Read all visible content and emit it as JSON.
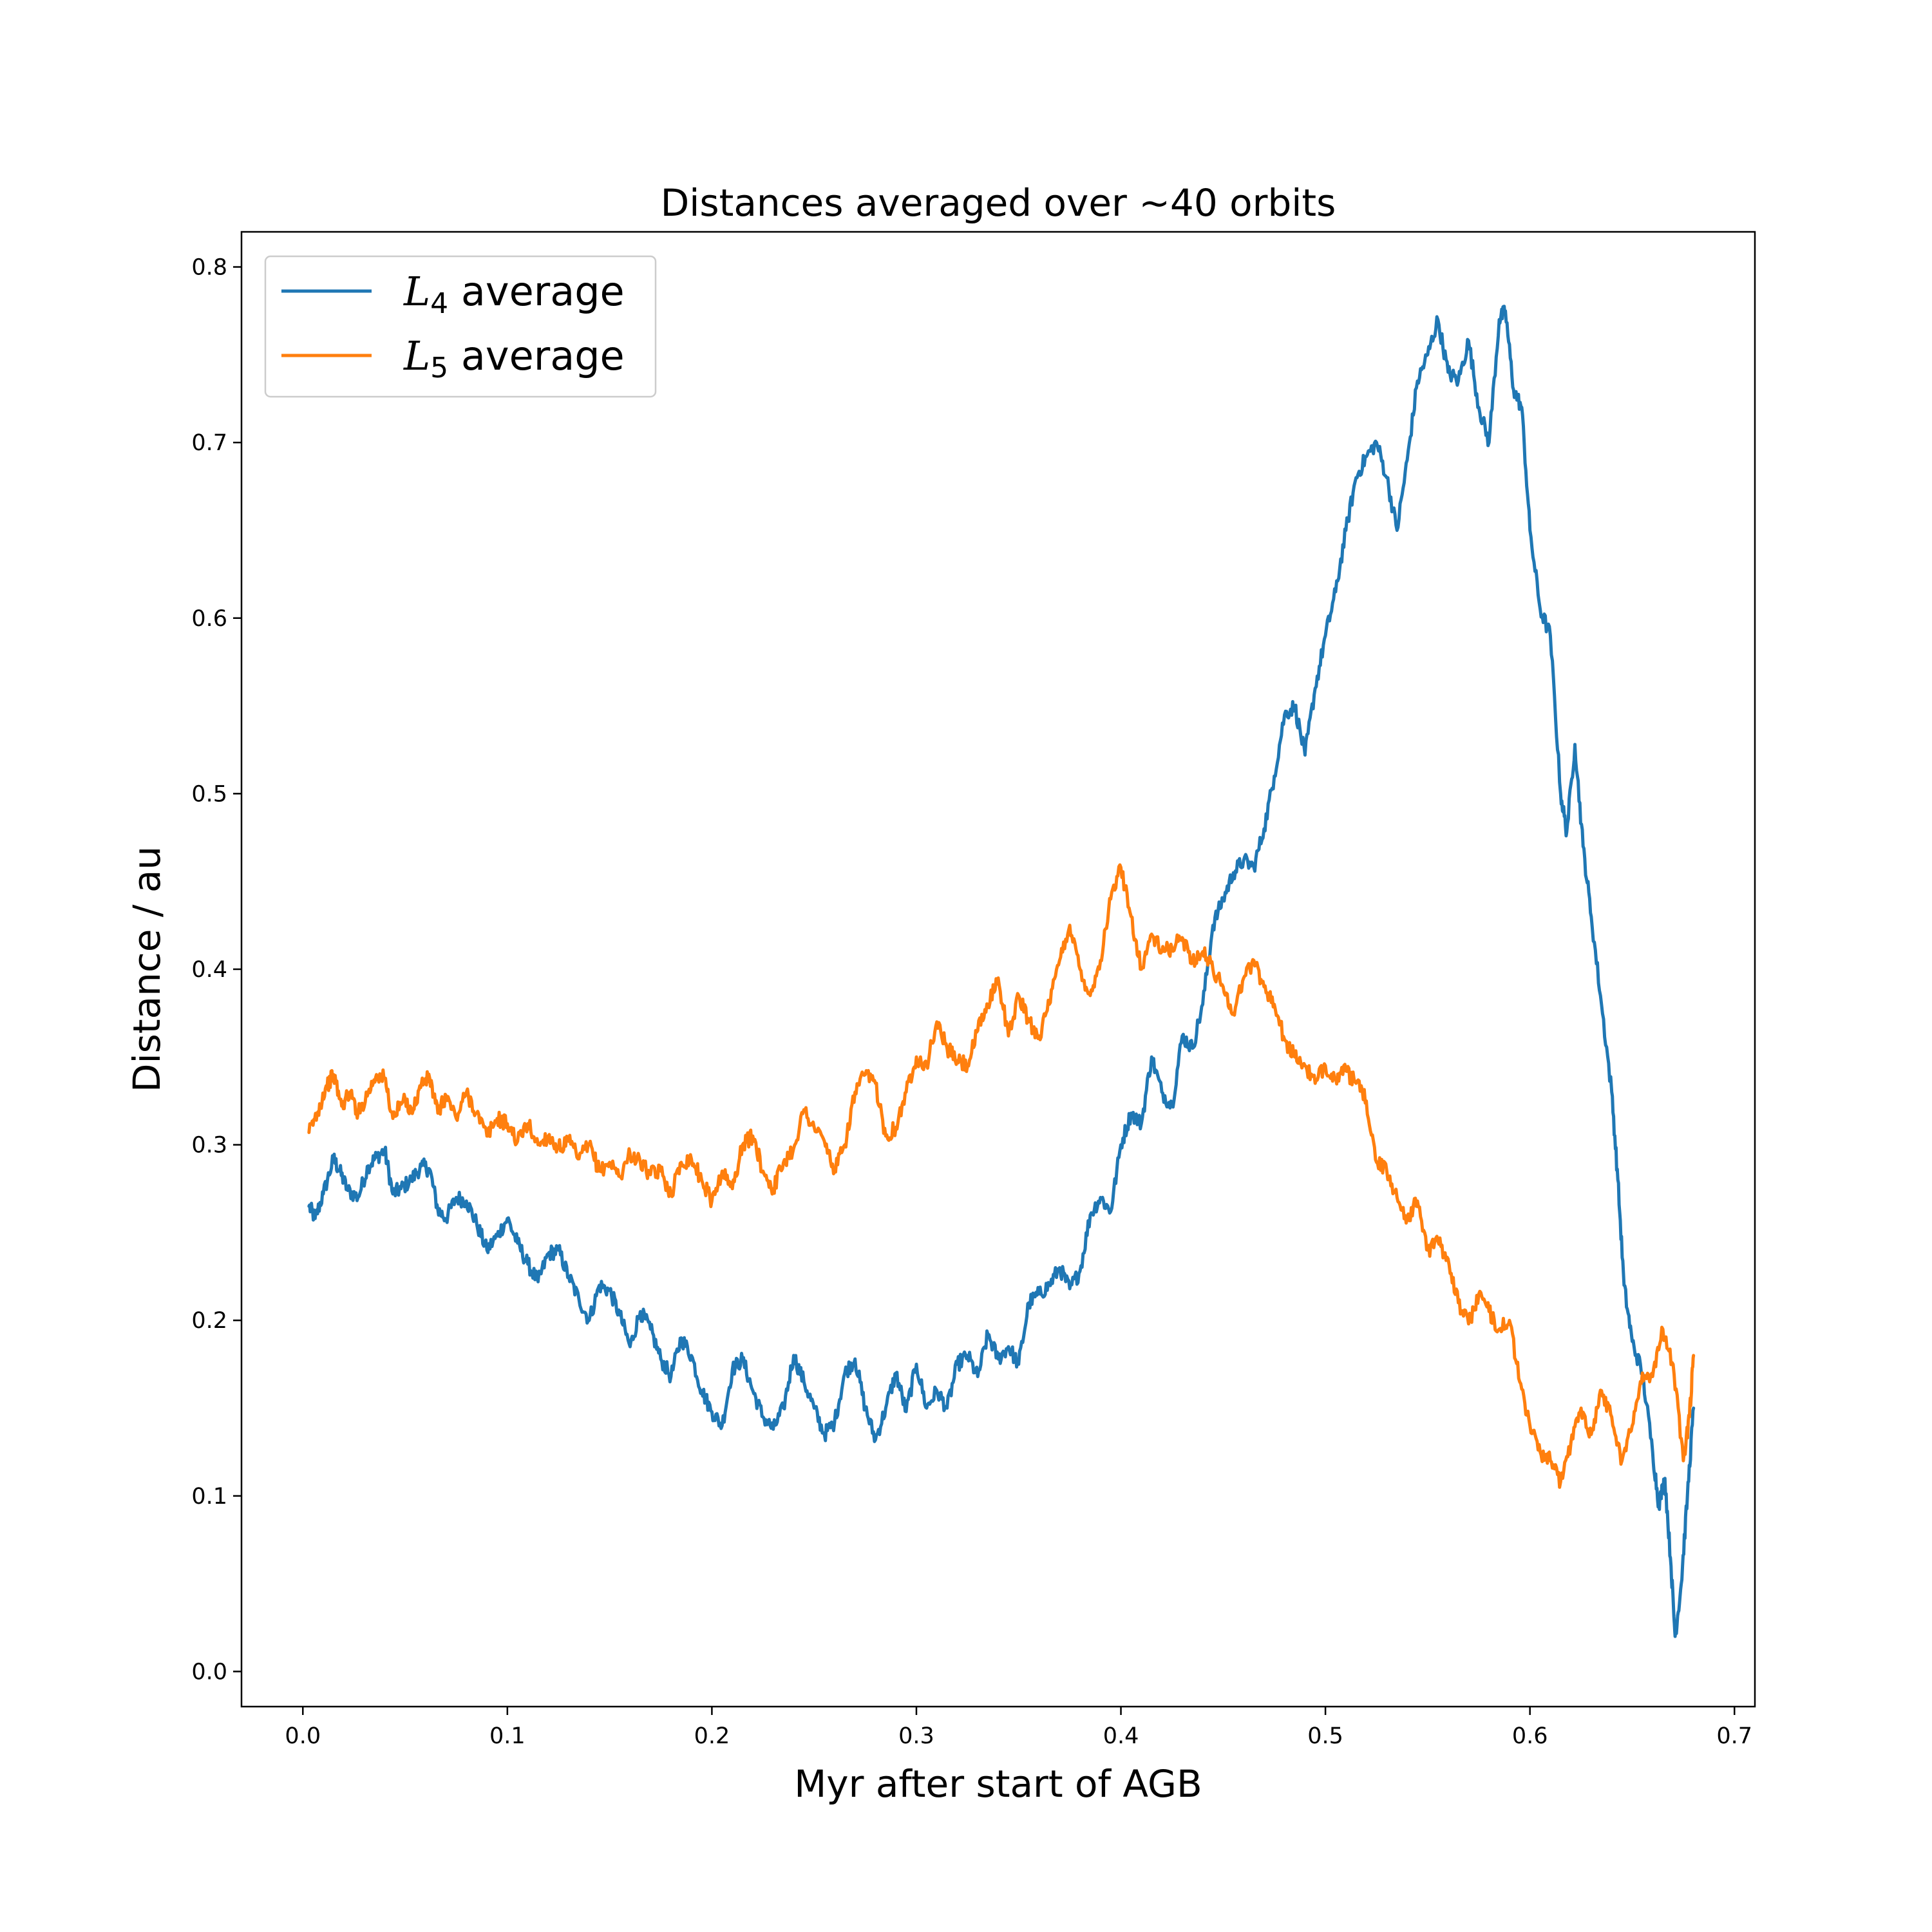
{
  "chart_data": {
    "type": "line",
    "title": "Distances averaged over  ~40 orbits",
    "xlabel": "Myr after start of AGB",
    "ylabel": "Distance / au",
    "xlim": [
      -0.03,
      0.71
    ],
    "ylim": [
      -0.02,
      0.82
    ],
    "x_ticks": [
      0.0,
      0.1,
      0.2,
      0.3,
      0.4,
      0.5,
      0.6,
      0.7
    ],
    "x_tick_labels": [
      "0.0",
      "0.1",
      "0.2",
      "0.3",
      "0.4",
      "0.5",
      "0.6",
      "0.7"
    ],
    "y_ticks": [
      0.0,
      0.1,
      0.2,
      0.3,
      0.4,
      0.5,
      0.6,
      0.7,
      0.8
    ],
    "y_tick_labels": [
      "0.0",
      "0.1",
      "0.2",
      "0.3",
      "0.4",
      "0.5",
      "0.6",
      "0.7",
      "0.8"
    ],
    "grid": false,
    "legend_position": "top-left",
    "series": [
      {
        "name": "L4 average",
        "legend_symbol": "L",
        "legend_subscript": "4",
        "legend_suffix": " average",
        "color": "#1f77b4",
        "points": [
          [
            0.003,
            0.265
          ],
          [
            0.006,
            0.258
          ],
          [
            0.01,
            0.272
          ],
          [
            0.015,
            0.292
          ],
          [
            0.018,
            0.285
          ],
          [
            0.022,
            0.274
          ],
          [
            0.027,
            0.27
          ],
          [
            0.032,
            0.288
          ],
          [
            0.036,
            0.293
          ],
          [
            0.04,
            0.297
          ],
          [
            0.044,
            0.272
          ],
          [
            0.048,
            0.275
          ],
          [
            0.053,
            0.28
          ],
          [
            0.058,
            0.288
          ],
          [
            0.062,
            0.286
          ],
          [
            0.066,
            0.263
          ],
          [
            0.07,
            0.258
          ],
          [
            0.075,
            0.27
          ],
          [
            0.08,
            0.268
          ],
          [
            0.085,
            0.255
          ],
          [
            0.09,
            0.24
          ],
          [
            0.095,
            0.248
          ],
          [
            0.1,
            0.258
          ],
          [
            0.105,
            0.244
          ],
          [
            0.11,
            0.232
          ],
          [
            0.115,
            0.222
          ],
          [
            0.12,
            0.238
          ],
          [
            0.125,
            0.24
          ],
          [
            0.13,
            0.225
          ],
          [
            0.135,
            0.212
          ],
          [
            0.14,
            0.2
          ],
          [
            0.145,
            0.22
          ],
          [
            0.15,
            0.217
          ],
          [
            0.155,
            0.203
          ],
          [
            0.16,
            0.185
          ],
          [
            0.165,
            0.205
          ],
          [
            0.17,
            0.195
          ],
          [
            0.175,
            0.178
          ],
          [
            0.18,
            0.168
          ],
          [
            0.185,
            0.19
          ],
          [
            0.19,
            0.18
          ],
          [
            0.195,
            0.16
          ],
          [
            0.2,
            0.148
          ],
          [
            0.205,
            0.14
          ],
          [
            0.21,
            0.172
          ],
          [
            0.215,
            0.178
          ],
          [
            0.22,
            0.16
          ],
          [
            0.225,
            0.145
          ],
          [
            0.23,
            0.138
          ],
          [
            0.235,
            0.15
          ],
          [
            0.24,
            0.18
          ],
          [
            0.245,
            0.165
          ],
          [
            0.25,
            0.15
          ],
          [
            0.255,
            0.135
          ],
          [
            0.26,
            0.142
          ],
          [
            0.265,
            0.17
          ],
          [
            0.27,
            0.178
          ],
          [
            0.275,
            0.15
          ],
          [
            0.28,
            0.132
          ],
          [
            0.285,
            0.15
          ],
          [
            0.29,
            0.17
          ],
          [
            0.295,
            0.148
          ],
          [
            0.3,
            0.175
          ],
          [
            0.305,
            0.15
          ],
          [
            0.31,
            0.16
          ],
          [
            0.315,
            0.15
          ],
          [
            0.32,
            0.175
          ],
          [
            0.325,
            0.18
          ],
          [
            0.33,
            0.168
          ],
          [
            0.335,
            0.192
          ],
          [
            0.34,
            0.178
          ],
          [
            0.345,
            0.185
          ],
          [
            0.35,
            0.175
          ],
          [
            0.355,
            0.21
          ],
          [
            0.36,
            0.215
          ],
          [
            0.365,
            0.22
          ],
          [
            0.37,
            0.23
          ],
          [
            0.375,
            0.218
          ],
          [
            0.38,
            0.228
          ],
          [
            0.385,
            0.26
          ],
          [
            0.39,
            0.27
          ],
          [
            0.395,
            0.262
          ],
          [
            0.4,
            0.3
          ],
          [
            0.405,
            0.318
          ],
          [
            0.41,
            0.312
          ],
          [
            0.415,
            0.35
          ],
          [
            0.42,
            0.33
          ],
          [
            0.425,
            0.322
          ],
          [
            0.43,
            0.362
          ],
          [
            0.435,
            0.355
          ],
          [
            0.44,
            0.38
          ],
          [
            0.445,
            0.425
          ],
          [
            0.45,
            0.44
          ],
          [
            0.455,
            0.455
          ],
          [
            0.46,
            0.462
          ],
          [
            0.465,
            0.458
          ],
          [
            0.47,
            0.48
          ],
          [
            0.475,
            0.51
          ],
          [
            0.48,
            0.545
          ],
          [
            0.485,
            0.55
          ],
          [
            0.49,
            0.522
          ],
          [
            0.495,
            0.56
          ],
          [
            0.5,
            0.59
          ],
          [
            0.505,
            0.615
          ],
          [
            0.51,
            0.65
          ],
          [
            0.515,
            0.68
          ],
          [
            0.52,
            0.692
          ],
          [
            0.525,
            0.7
          ],
          [
            0.53,
            0.68
          ],
          [
            0.535,
            0.65
          ],
          [
            0.54,
            0.69
          ],
          [
            0.545,
            0.735
          ],
          [
            0.55,
            0.75
          ],
          [
            0.555,
            0.77
          ],
          [
            0.56,
            0.74
          ],
          [
            0.565,
            0.735
          ],
          [
            0.57,
            0.758
          ],
          [
            0.575,
            0.72
          ],
          [
            0.58,
            0.7
          ],
          [
            0.585,
            0.77
          ],
          [
            0.588,
            0.775
          ],
          [
            0.592,
            0.73
          ],
          [
            0.596,
            0.72
          ],
          [
            0.6,
            0.65
          ],
          [
            0.605,
            0.605
          ],
          [
            0.61,
            0.59
          ],
          [
            0.615,
            0.5
          ],
          [
            0.618,
            0.478
          ],
          [
            0.622,
            0.528
          ],
          [
            0.626,
            0.47
          ],
          [
            0.63,
            0.43
          ],
          [
            0.635,
            0.38
          ],
          [
            0.64,
            0.33
          ],
          [
            0.643,
            0.28
          ],
          [
            0.646,
            0.22
          ],
          [
            0.65,
            0.188
          ],
          [
            0.655,
            0.17
          ],
          [
            0.66,
            0.125
          ],
          [
            0.663,
            0.095
          ],
          [
            0.666,
            0.11
          ],
          [
            0.669,
            0.06
          ],
          [
            0.671,
            0.02
          ],
          [
            0.674,
            0.05
          ],
          [
            0.677,
            0.1
          ],
          [
            0.68,
            0.15
          ]
        ]
      },
      {
        "name": "L5 average",
        "legend_symbol": "L",
        "legend_subscript": "5",
        "legend_suffix": " average",
        "color": "#ff7f0e",
        "points": [
          [
            0.003,
            0.307
          ],
          [
            0.007,
            0.318
          ],
          [
            0.011,
            0.332
          ],
          [
            0.015,
            0.34
          ],
          [
            0.019,
            0.322
          ],
          [
            0.023,
            0.33
          ],
          [
            0.027,
            0.318
          ],
          [
            0.032,
            0.33
          ],
          [
            0.036,
            0.34
          ],
          [
            0.04,
            0.338
          ],
          [
            0.044,
            0.315
          ],
          [
            0.049,
            0.325
          ],
          [
            0.054,
            0.32
          ],
          [
            0.058,
            0.335
          ],
          [
            0.062,
            0.338
          ],
          [
            0.066,
            0.318
          ],
          [
            0.07,
            0.328
          ],
          [
            0.075,
            0.315
          ],
          [
            0.08,
            0.33
          ],
          [
            0.085,
            0.318
          ],
          [
            0.09,
            0.305
          ],
          [
            0.095,
            0.315
          ],
          [
            0.1,
            0.312
          ],
          [
            0.105,
            0.302
          ],
          [
            0.11,
            0.312
          ],
          [
            0.115,
            0.3
          ],
          [
            0.12,
            0.305
          ],
          [
            0.125,
            0.298
          ],
          [
            0.13,
            0.302
          ],
          [
            0.135,
            0.292
          ],
          [
            0.14,
            0.3
          ],
          [
            0.145,
            0.285
          ],
          [
            0.15,
            0.29
          ],
          [
            0.155,
            0.282
          ],
          [
            0.16,
            0.295
          ],
          [
            0.165,
            0.29
          ],
          [
            0.17,
            0.283
          ],
          [
            0.175,
            0.285
          ],
          [
            0.18,
            0.272
          ],
          [
            0.185,
            0.29
          ],
          [
            0.19,
            0.292
          ],
          [
            0.195,
            0.28
          ],
          [
            0.2,
            0.268
          ],
          [
            0.205,
            0.285
          ],
          [
            0.21,
            0.275
          ],
          [
            0.215,
            0.3
          ],
          [
            0.22,
            0.305
          ],
          [
            0.225,
            0.285
          ],
          [
            0.23,
            0.275
          ],
          [
            0.235,
            0.29
          ],
          [
            0.24,
            0.298
          ],
          [
            0.245,
            0.32
          ],
          [
            0.25,
            0.31
          ],
          [
            0.255,
            0.302
          ],
          [
            0.26,
            0.285
          ],
          [
            0.265,
            0.3
          ],
          [
            0.27,
            0.33
          ],
          [
            0.275,
            0.34
          ],
          [
            0.28,
            0.335
          ],
          [
            0.285,
            0.305
          ],
          [
            0.29,
            0.31
          ],
          [
            0.295,
            0.33
          ],
          [
            0.3,
            0.35
          ],
          [
            0.305,
            0.345
          ],
          [
            0.31,
            0.37
          ],
          [
            0.315,
            0.355
          ],
          [
            0.32,
            0.348
          ],
          [
            0.325,
            0.345
          ],
          [
            0.33,
            0.365
          ],
          [
            0.335,
            0.38
          ],
          [
            0.34,
            0.395
          ],
          [
            0.345,
            0.362
          ],
          [
            0.35,
            0.385
          ],
          [
            0.355,
            0.37
          ],
          [
            0.36,
            0.362
          ],
          [
            0.365,
            0.38
          ],
          [
            0.37,
            0.405
          ],
          [
            0.375,
            0.425
          ],
          [
            0.38,
            0.4
          ],
          [
            0.385,
            0.385
          ],
          [
            0.39,
            0.405
          ],
          [
            0.395,
            0.44
          ],
          [
            0.4,
            0.458
          ],
          [
            0.405,
            0.43
          ],
          [
            0.41,
            0.4
          ],
          [
            0.415,
            0.42
          ],
          [
            0.42,
            0.41
          ],
          [
            0.425,
            0.412
          ],
          [
            0.43,
            0.418
          ],
          [
            0.435,
            0.405
          ],
          [
            0.44,
            0.41
          ],
          [
            0.445,
            0.4
          ],
          [
            0.45,
            0.39
          ],
          [
            0.455,
            0.375
          ],
          [
            0.46,
            0.395
          ],
          [
            0.465,
            0.405
          ],
          [
            0.47,
            0.39
          ],
          [
            0.475,
            0.38
          ],
          [
            0.48,
            0.36
          ],
          [
            0.485,
            0.35
          ],
          [
            0.49,
            0.345
          ],
          [
            0.495,
            0.335
          ],
          [
            0.5,
            0.345
          ],
          [
            0.505,
            0.338
          ],
          [
            0.51,
            0.342
          ],
          [
            0.515,
            0.335
          ],
          [
            0.52,
            0.325
          ],
          [
            0.525,
            0.29
          ],
          [
            0.53,
            0.285
          ],
          [
            0.535,
            0.27
          ],
          [
            0.54,
            0.258
          ],
          [
            0.545,
            0.268
          ],
          [
            0.55,
            0.24
          ],
          [
            0.555,
            0.245
          ],
          [
            0.56,
            0.235
          ],
          [
            0.565,
            0.21
          ],
          [
            0.57,
            0.198
          ],
          [
            0.575,
            0.215
          ],
          [
            0.58,
            0.205
          ],
          [
            0.585,
            0.195
          ],
          [
            0.59,
            0.2
          ],
          [
            0.595,
            0.165
          ],
          [
            0.6,
            0.14
          ],
          [
            0.605,
            0.125
          ],
          [
            0.61,
            0.12
          ],
          [
            0.615,
            0.108
          ],
          [
            0.62,
            0.13
          ],
          [
            0.625,
            0.15
          ],
          [
            0.63,
            0.135
          ],
          [
            0.635,
            0.16
          ],
          [
            0.64,
            0.145
          ],
          [
            0.645,
            0.12
          ],
          [
            0.65,
            0.14
          ],
          [
            0.655,
            0.17
          ],
          [
            0.66,
            0.168
          ],
          [
            0.665,
            0.195
          ],
          [
            0.67,
            0.175
          ],
          [
            0.675,
            0.12
          ],
          [
            0.678,
            0.145
          ],
          [
            0.68,
            0.18
          ]
        ]
      }
    ]
  }
}
